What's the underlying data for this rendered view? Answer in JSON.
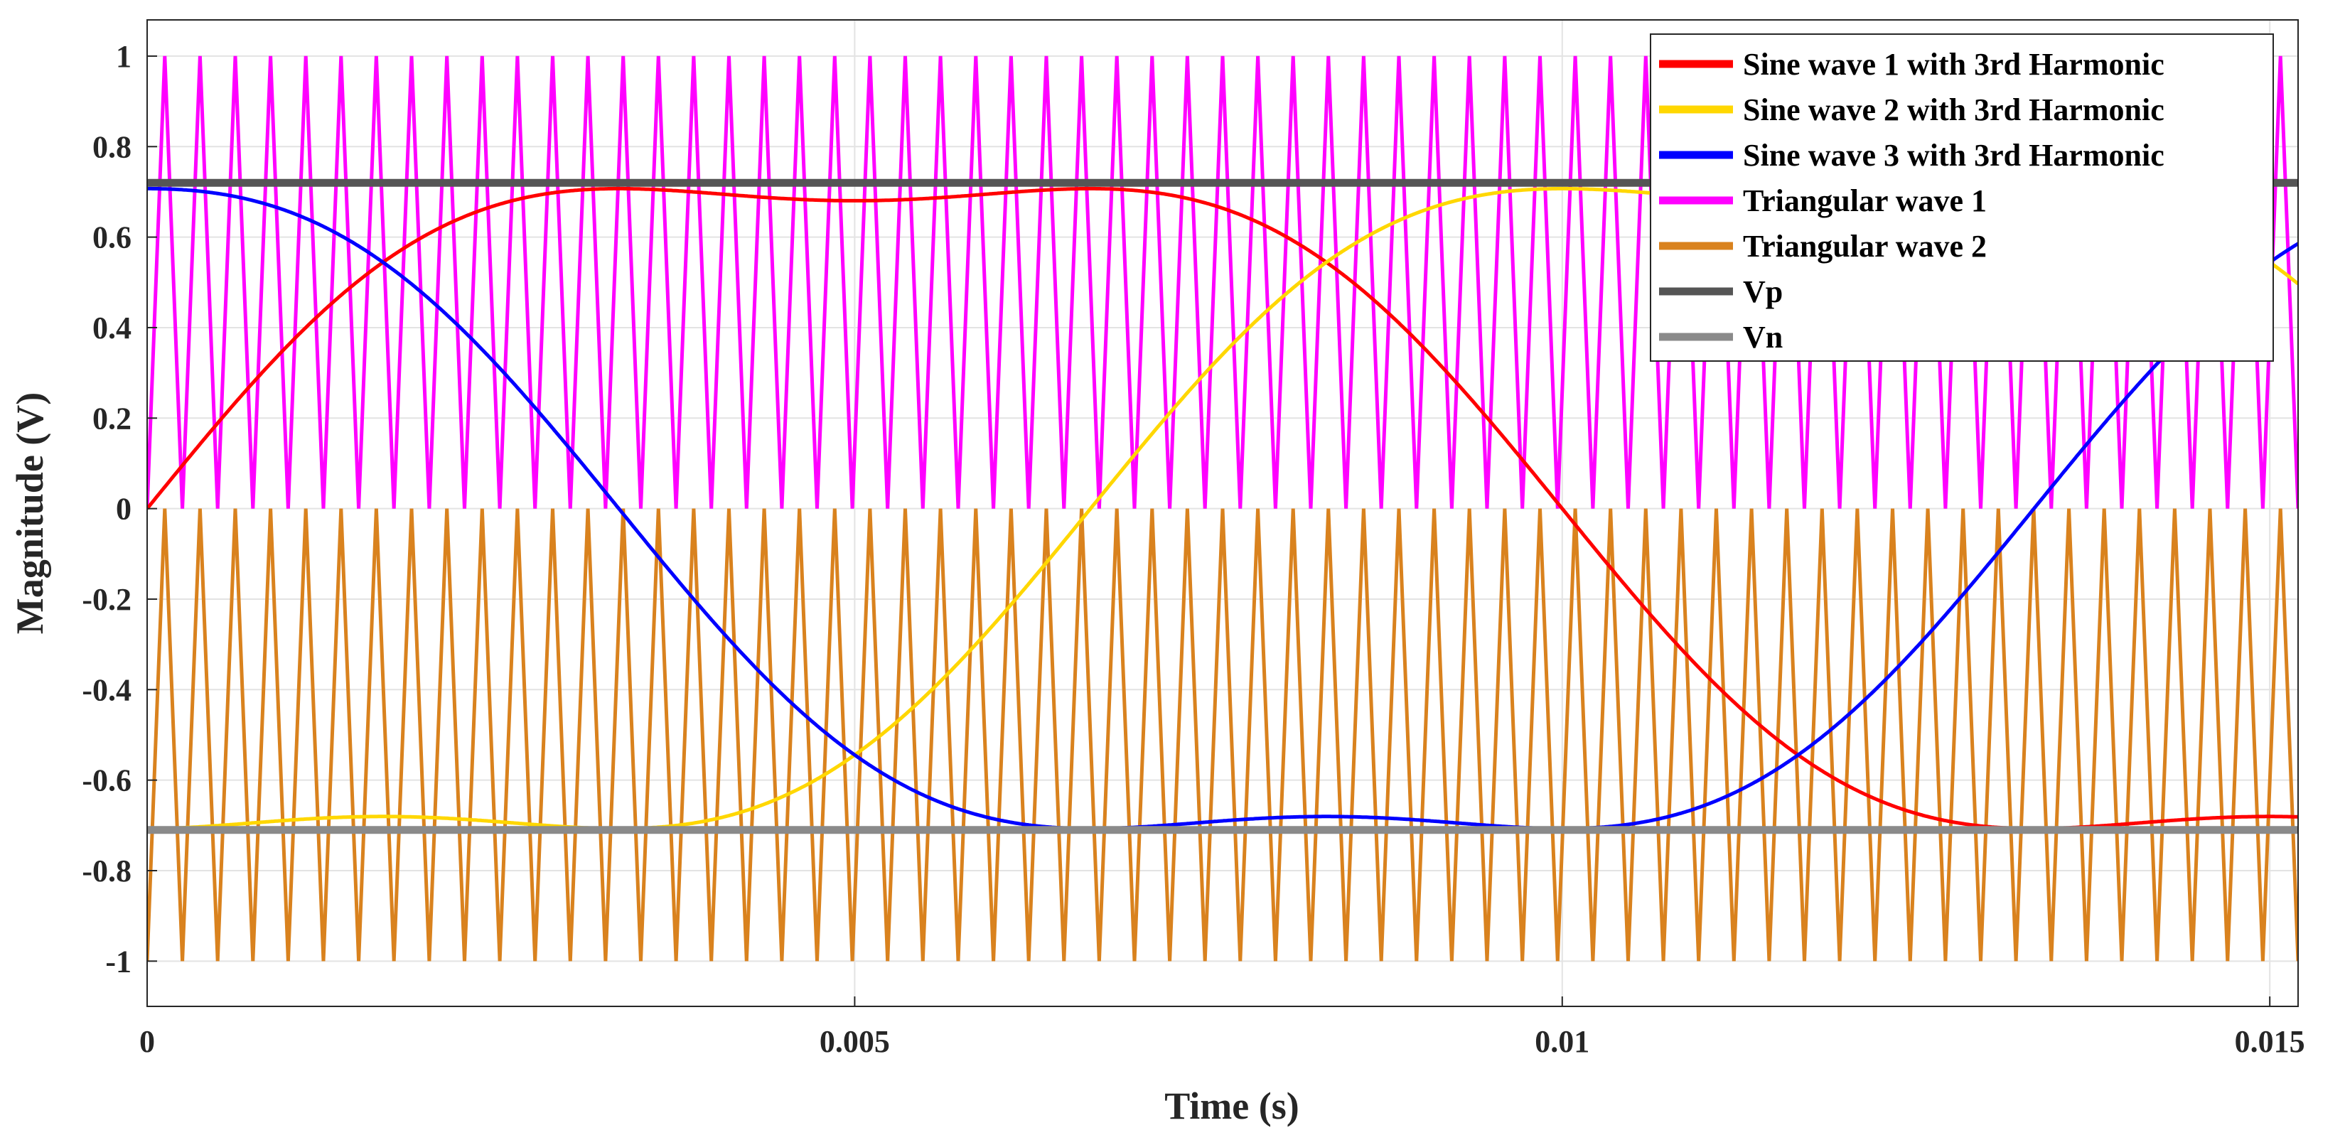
{
  "chart_data": {
    "type": "line",
    "title": "",
    "xlabel": "Time (s)",
    "ylabel": "Magnitude (V)",
    "xlim": [
      0,
      0.0152
    ],
    "ylim": [
      -1.1,
      1.08
    ],
    "x_ticks": [
      0,
      0.005,
      0.01,
      0.015
    ],
    "x_tick_labels": [
      "0",
      "0.005",
      "0.01",
      "0.015"
    ],
    "y_ticks": [
      1,
      0.8,
      0.6,
      0.4,
      0.2,
      0,
      -0.2,
      -0.4,
      -0.6,
      -0.8,
      -1
    ],
    "y_tick_labels": [
      "1",
      "0.8",
      "0.6",
      "0.4",
      "0.2",
      "0",
      "-0.2",
      "-0.4",
      "-0.6",
      "-0.8",
      "-1"
    ],
    "grid": true,
    "legend_position": "top-right",
    "fundamental_frequency_hz": 50,
    "carrier_cycles_shown": 61,
    "series": [
      {
        "name": "Sine wave 1 with 3rd Harmonic",
        "color": "#ff0000",
        "kind": "third-harmonic-injected sine",
        "amplitude": 0.8165,
        "third_harmonic_ratio": 0.1667,
        "phase_deg": 0,
        "x": [
          0,
          0.0005,
          0.001,
          0.0015,
          0.002,
          0.0025,
          0.003,
          0.004,
          0.005,
          0.006,
          0.007,
          0.0075,
          0.008,
          0.0085,
          0.009,
          0.0095,
          0.01,
          0.0105,
          0.011,
          0.0115,
          0.012,
          0.0125,
          0.013,
          0.0135,
          0.014,
          0.015
        ],
        "y": [
          0.0,
          0.21,
          0.39,
          0.53,
          0.63,
          0.68,
          0.7,
          0.71,
          0.69,
          0.69,
          0.71,
          0.69,
          0.64,
          0.55,
          0.44,
          0.27,
          0.04,
          -0.18,
          -0.37,
          -0.52,
          -0.62,
          -0.68,
          -0.71,
          -0.71,
          -0.69,
          -0.69
        ]
      },
      {
        "name": "Sine wave 2 with 3rd Harmonic",
        "color": "#ffd700",
        "kind": "third-harmonic-injected sine",
        "amplitude": 0.8165,
        "third_harmonic_ratio": 0.1667,
        "phase_deg": 120,
        "x": [
          0,
          0.001,
          0.002,
          0.003,
          0.004,
          0.005,
          0.006,
          0.007,
          0.008,
          0.009,
          0.01,
          0.011,
          0.012,
          0.013,
          0.014,
          0.015
        ],
        "y": [
          0.71,
          0.69,
          0.54,
          0.23,
          -0.18,
          -0.55,
          -0.69,
          -0.71,
          -0.69,
          -0.69,
          -0.71,
          -0.68,
          -0.53,
          -0.23,
          0.19,
          0.57
        ]
      },
      {
        "name": "Sine wave 3 with 3rd Harmonic",
        "color": "#0000ff",
        "kind": "third-harmonic-injected sine",
        "amplitude": 0.8165,
        "third_harmonic_ratio": 0.1667,
        "phase_deg": 240,
        "x": [
          0,
          0.001,
          0.002,
          0.003,
          0.004,
          0.005,
          0.006,
          0.007,
          0.008,
          0.009,
          0.01,
          0.011,
          0.012,
          0.013,
          0.014,
          0.015
        ],
        "y": [
          -0.71,
          -0.69,
          -0.69,
          -0.71,
          -0.69,
          -0.57,
          -0.27,
          0.14,
          0.5,
          0.68,
          0.71,
          0.69,
          0.69,
          0.71,
          0.67,
          0.52
        ]
      },
      {
        "name": "Triangular wave 1",
        "color": "#ff00ff",
        "kind": "triangular carrier",
        "range": [
          0,
          1
        ]
      },
      {
        "name": "Triangular wave 2",
        "color": "#d9821e",
        "kind": "triangular carrier",
        "range": [
          -1,
          0
        ]
      },
      {
        "name": "Vp",
        "color": "#555555",
        "kind": "constant",
        "value": 0.72
      },
      {
        "name": "Vn",
        "color": "#8a8a8a",
        "kind": "constant",
        "value": -0.71
      }
    ]
  }
}
